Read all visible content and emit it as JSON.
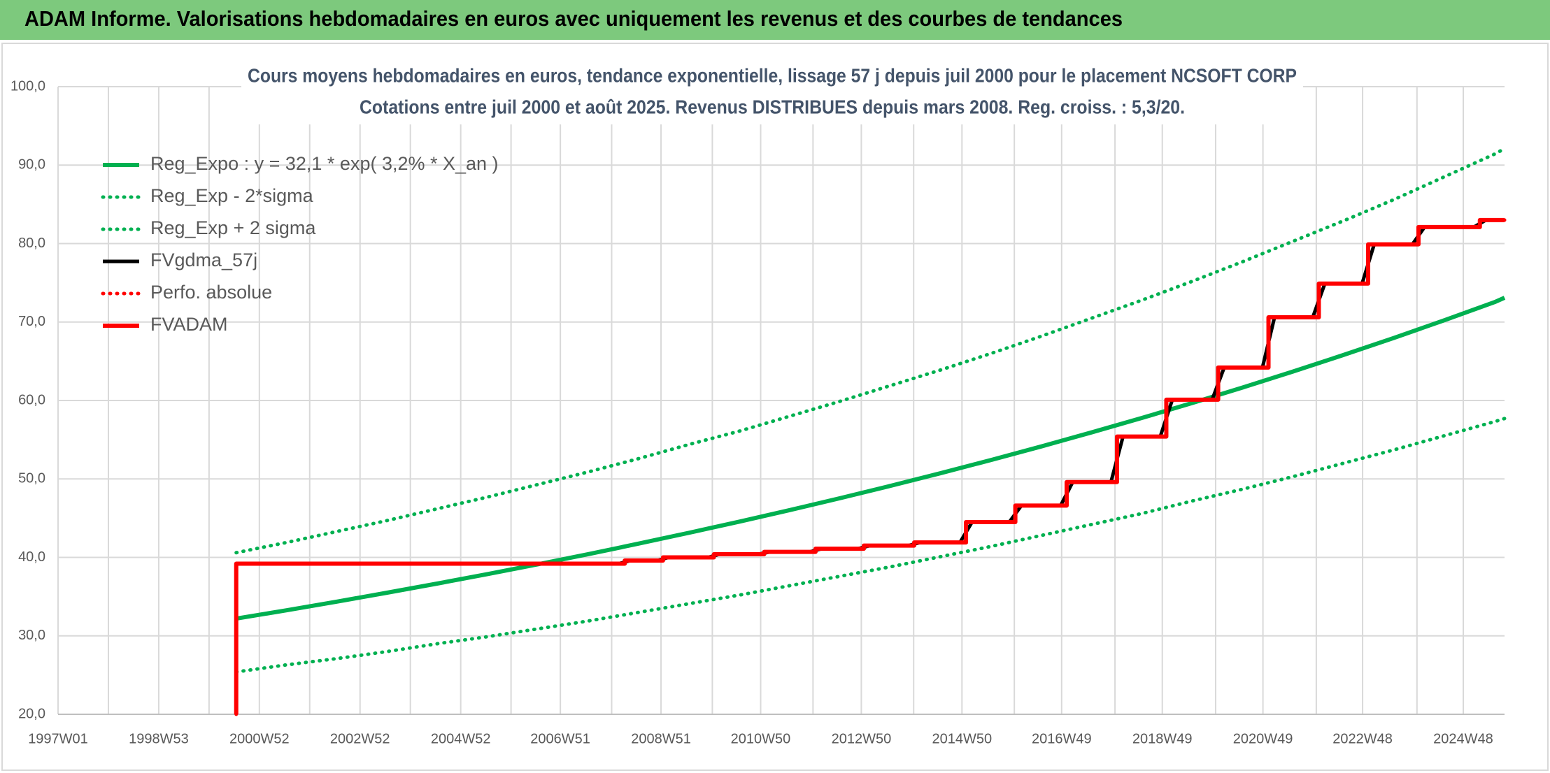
{
  "header": {
    "title": "ADAM Informe. Valorisations hebdomadaires en euros avec uniquement les revenus et des courbes de tendances"
  },
  "chart_data": {
    "type": "line",
    "title": "Cours moyens hebdomadaires en euros, tendance exponentielle, lissage 57 j depuis juil 2000 pour le placement NCSOFT CORP",
    "subtitle": "Cotations entre juil 2000 et août 2025. Revenus DISTRIBUES depuis mars 2008. Reg. croiss. : 5,3/20.",
    "xlim": [
      1997,
      2025.74
    ],
    "xticks": [
      {
        "value": 1997.0,
        "label": "1997W01"
      },
      {
        "value": 1999.0,
        "label": "1998W53"
      },
      {
        "value": 2001.0,
        "label": "2000W52"
      },
      {
        "value": 2003.0,
        "label": "2002W52"
      },
      {
        "value": 2005.0,
        "label": "2004W52"
      },
      {
        "value": 2006.98,
        "label": "2006W51"
      },
      {
        "value": 2008.98,
        "label": "2008W51"
      },
      {
        "value": 2010.96,
        "label": "2010W50"
      },
      {
        "value": 2012.96,
        "label": "2012W50"
      },
      {
        "value": 2014.96,
        "label": "2014W50"
      },
      {
        "value": 2016.94,
        "label": "2016W49"
      },
      {
        "value": 2018.94,
        "label": "2018W49"
      },
      {
        "value": 2020.94,
        "label": "2020W49"
      },
      {
        "value": 2022.92,
        "label": "2022W48"
      },
      {
        "value": 2024.92,
        "label": "2024W48"
      }
    ],
    "xgrid_minor": [
      1998,
      2000,
      2002,
      2004,
      2006,
      2008,
      2010,
      2012,
      2014,
      2016,
      2018,
      2020,
      2022,
      2024
    ],
    "ylim": [
      20,
      100
    ],
    "yticks": [
      {
        "value": 20,
        "label": "20,0"
      },
      {
        "value": 30,
        "label": "30,0"
      },
      {
        "value": 40,
        "label": "40,0"
      },
      {
        "value": 50,
        "label": "50,0"
      },
      {
        "value": 60,
        "label": "60,0"
      },
      {
        "value": 70,
        "label": "70,0"
      },
      {
        "value": 80,
        "label": "80,0"
      },
      {
        "value": 90,
        "label": "90,0"
      },
      {
        "value": 100,
        "label": "100,0"
      }
    ],
    "grid": true,
    "legend": "top-left",
    "series": [
      {
        "name": "Reg_Expo : y = 32,1 * exp( 3,2% *  X_an )",
        "color": "#00b050",
        "style": "solid",
        "x": [
          2000.54,
          2001.54,
          2002.54,
          2003.54,
          2004.54,
          2005.54,
          2006.54,
          2007.54,
          2008.54,
          2009.54,
          2010.54,
          2011.54,
          2012.54,
          2013.54,
          2014.54,
          2015.54,
          2016.54,
          2017.54,
          2018.54,
          2019.54,
          2020.54,
          2021.54,
          2022.54,
          2023.54,
          2024.54,
          2025.54,
          2025.74
        ],
        "values": [
          32.2,
          33.26,
          34.36,
          35.5,
          36.67,
          37.88,
          39.13,
          40.42,
          41.76,
          43.14,
          44.56,
          46.03,
          47.55,
          49.12,
          50.74,
          52.42,
          54.15,
          55.94,
          57.78,
          59.69,
          61.66,
          63.7,
          65.8,
          67.97,
          70.22,
          72.53,
          73.1
        ]
      },
      {
        "name": "Reg_Exp - 2*sigma",
        "color": "#00b050",
        "style": "dotted",
        "x": [
          2000.54,
          2001.54,
          2002.54,
          2003.54,
          2004.54,
          2005.54,
          2006.54,
          2007.54,
          2008.54,
          2009.54,
          2010.54,
          2011.54,
          2012.54,
          2013.54,
          2014.54,
          2015.54,
          2016.54,
          2017.54,
          2018.54,
          2019.54,
          2020.54,
          2021.54,
          2022.54,
          2023.54,
          2024.54,
          2025.54,
          2025.74
        ],
        "values": [
          25.4,
          26.3,
          27.1,
          28.0,
          29.0,
          29.9,
          30.9,
          31.9,
          33.0,
          34.1,
          35.2,
          36.4,
          37.6,
          38.8,
          40.1,
          41.4,
          42.8,
          44.2,
          45.6,
          47.2,
          48.7,
          50.3,
          52.0,
          53.7,
          55.5,
          57.3,
          57.7
        ]
      },
      {
        "name": "Reg_Exp + 2 sigma",
        "color": "#00b050",
        "style": "dotted",
        "x": [
          2000.54,
          2001.54,
          2002.54,
          2003.54,
          2004.54,
          2005.54,
          2006.54,
          2007.54,
          2008.54,
          2009.54,
          2010.54,
          2011.54,
          2012.54,
          2013.54,
          2014.54,
          2015.54,
          2016.54,
          2017.54,
          2018.54,
          2019.54,
          2020.54,
          2021.54,
          2022.54,
          2023.54,
          2024.54,
          2025.54,
          2025.74
        ],
        "values": [
          40.6,
          41.9,
          43.3,
          44.7,
          46.2,
          47.7,
          49.3,
          50.9,
          52.6,
          54.4,
          56.1,
          58.0,
          59.9,
          61.9,
          63.9,
          66.0,
          68.2,
          70.5,
          72.8,
          75.2,
          77.7,
          80.3,
          82.9,
          85.6,
          88.5,
          91.4,
          92.1
        ]
      },
      {
        "name": "FVgdma_57j",
        "color": "#000000",
        "style": "solid",
        "x": [
          2000.54,
          2008.14,
          2008.38,
          2008.9,
          2009.14,
          2009.91,
          2010.15,
          2010.91,
          2011.15,
          2011.93,
          2012.17,
          2012.89,
          2013.13,
          2013.89,
          2014.13,
          2014.92,
          2015.16,
          2015.9,
          2016.14,
          2016.92,
          2017.16,
          2017.92,
          2018.16,
          2018.9,
          2019.14,
          2019.93,
          2020.17,
          2020.93,
          2021.17,
          2021.93,
          2022.17,
          2022.91,
          2023.15,
          2023.91,
          2024.15,
          2025.13,
          2025.37,
          2025.74
        ],
        "values": [
          39.2,
          39.2,
          39.6,
          39.6,
          40.0,
          40.0,
          40.4,
          40.4,
          40.7,
          40.7,
          41.1,
          41.1,
          41.5,
          41.5,
          41.9,
          41.9,
          44.5,
          44.5,
          46.6,
          46.6,
          49.6,
          49.6,
          55.4,
          55.4,
          60.1,
          60.1,
          64.2,
          64.2,
          70.6,
          70.6,
          74.9,
          74.9,
          79.9,
          79.9,
          82.1,
          82.1,
          83.0,
          83.0
        ]
      },
      {
        "name": "Perfo. absolue",
        "color": "#ff0000",
        "style": "dotted",
        "x": [
          2000.54,
          2000.54,
          2008.26,
          2008.26,
          2009.02,
          2009.02,
          2010.03,
          2010.03,
          2011.03,
          2011.03,
          2012.05,
          2012.05,
          2013.01,
          2013.01,
          2014.01,
          2014.01,
          2015.04,
          2015.04,
          2016.02,
          2016.02,
          2017.04,
          2017.04,
          2018.04,
          2018.04,
          2019.02,
          2019.02,
          2020.05,
          2020.05,
          2021.05,
          2021.05,
          2022.05,
          2022.05,
          2023.03,
          2023.03,
          2024.03,
          2024.03,
          2025.25,
          2025.25,
          2025.74
        ],
        "values": [
          20,
          39.2,
          39.2,
          39.6,
          39.6,
          40.0,
          40.0,
          40.4,
          40.4,
          40.7,
          40.7,
          41.1,
          41.1,
          41.5,
          41.5,
          41.9,
          41.9,
          44.5,
          44.5,
          46.6,
          46.6,
          49.6,
          49.6,
          55.4,
          55.4,
          60.1,
          60.1,
          64.2,
          64.2,
          70.6,
          70.6,
          74.9,
          74.9,
          79.9,
          79.9,
          82.1,
          82.1,
          83.0,
          83.0
        ]
      },
      {
        "name": "FVADAM",
        "color": "#ff0000",
        "style": "solid",
        "x": [
          2000.54,
          2000.54,
          2008.26,
          2008.26,
          2009.02,
          2009.02,
          2010.03,
          2010.03,
          2011.03,
          2011.03,
          2012.05,
          2012.05,
          2013.01,
          2013.01,
          2014.01,
          2014.01,
          2015.04,
          2015.04,
          2016.02,
          2016.02,
          2017.04,
          2017.04,
          2018.04,
          2018.04,
          2019.02,
          2019.02,
          2020.05,
          2020.05,
          2021.05,
          2021.05,
          2022.05,
          2022.05,
          2023.03,
          2023.03,
          2024.03,
          2024.03,
          2025.25,
          2025.25,
          2025.74
        ],
        "values": [
          20,
          39.2,
          39.2,
          39.6,
          39.6,
          40.0,
          40.0,
          40.4,
          40.4,
          40.7,
          40.7,
          41.1,
          41.1,
          41.5,
          41.5,
          41.9,
          41.9,
          44.5,
          44.5,
          46.6,
          46.6,
          49.6,
          49.6,
          55.4,
          55.4,
          60.1,
          60.1,
          64.2,
          64.2,
          70.6,
          70.6,
          74.9,
          74.9,
          79.9,
          79.9,
          82.1,
          82.1,
          83.0,
          83.0
        ]
      }
    ]
  }
}
